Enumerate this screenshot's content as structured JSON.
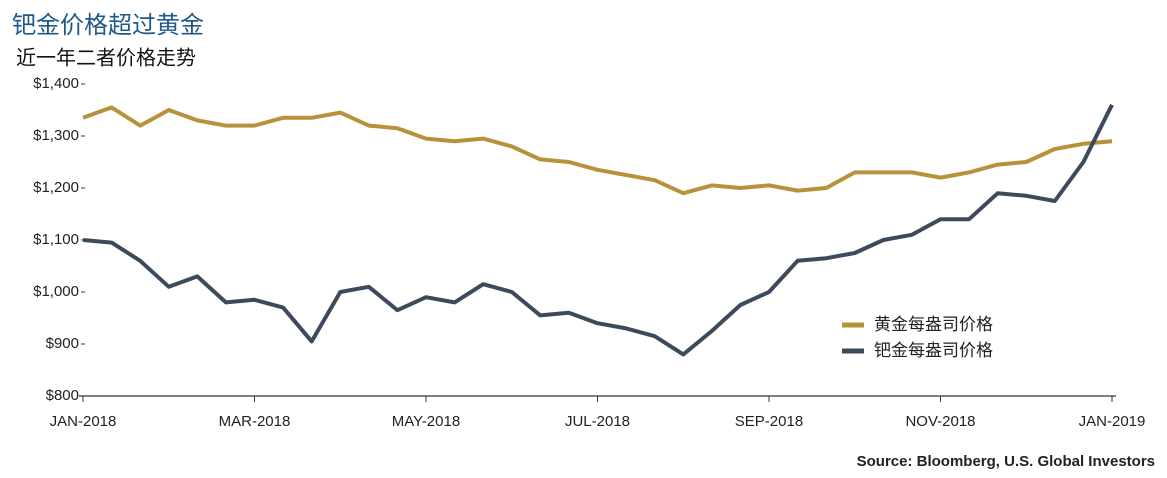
{
  "chart_data": {
    "type": "line",
    "title": "钯金价格超过黄金",
    "subtitle": "近一年二者价格走势",
    "source": "Source: Bloomberg, U.S. Global Investors",
    "categories": [
      "JAN-2018",
      null,
      null,
      null,
      null,
      null,
      "MAR-2018",
      null,
      null,
      null,
      null,
      null,
      "MAY-2018",
      null,
      null,
      null,
      null,
      null,
      "JUL-2018",
      null,
      null,
      null,
      null,
      null,
      "SEP-2018",
      null,
      null,
      null,
      null,
      null,
      "NOV-2018",
      null,
      null,
      null,
      null,
      null,
      "JAN-2019"
    ],
    "series": [
      {
        "name": "黄金每盎司价格",
        "color": "#b8923a",
        "values": [
          1335,
          1355,
          1320,
          1350,
          1330,
          1320,
          1320,
          1335,
          1335,
          1345,
          1320,
          1315,
          1295,
          1290,
          1295,
          1280,
          1255,
          1250,
          1235,
          1225,
          1215,
          1190,
          1205,
          1200,
          1205,
          1195,
          1200,
          1230,
          1230,
          1230,
          1220,
          1230,
          1245,
          1250,
          1275,
          1285,
          1290
        ]
      },
      {
        "name": "钯金每盎司价格",
        "color": "#3c4a5c",
        "values": [
          1100,
          1095,
          1060,
          1010,
          1030,
          980,
          985,
          970,
          905,
          1000,
          1010,
          965,
          990,
          980,
          1015,
          1000,
          955,
          960,
          940,
          930,
          915,
          880,
          925,
          975,
          1000,
          1060,
          1065,
          1075,
          1100,
          1110,
          1140,
          1140,
          1190,
          1185,
          1175,
          1250,
          1360
        ]
      }
    ],
    "ylim": [
      800,
      1400
    ],
    "yticks": [
      {
        "value": 800,
        "label": "$800"
      },
      {
        "value": 900,
        "label": "$900"
      },
      {
        "value": 1000,
        "label": "$1,000"
      },
      {
        "value": 1100,
        "label": "$1,100"
      },
      {
        "value": 1200,
        "label": "$1,200"
      },
      {
        "value": 1300,
        "label": "$1,300"
      },
      {
        "value": 1400,
        "label": "$1,400"
      }
    ],
    "grid": false
  }
}
